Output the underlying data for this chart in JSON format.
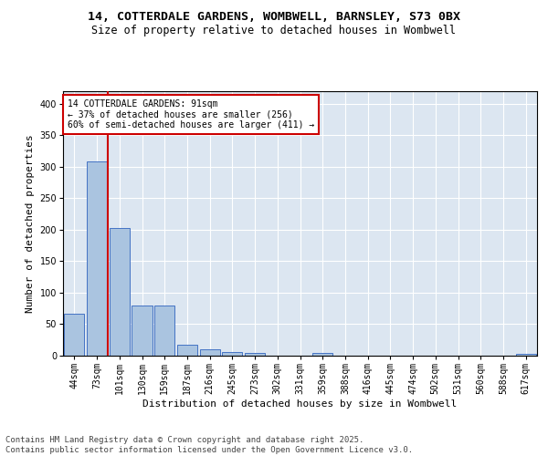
{
  "title_line1": "14, COTTERDALE GARDENS, WOMBWELL, BARNSLEY, S73 0BX",
  "title_line2": "Size of property relative to detached houses in Wombwell",
  "xlabel": "Distribution of detached houses by size in Wombwell",
  "ylabel": "Number of detached properties",
  "categories": [
    "44sqm",
    "73sqm",
    "101sqm",
    "130sqm",
    "159sqm",
    "187sqm",
    "216sqm",
    "245sqm",
    "273sqm",
    "302sqm",
    "331sqm",
    "359sqm",
    "388sqm",
    "416sqm",
    "445sqm",
    "474sqm",
    "502sqm",
    "531sqm",
    "560sqm",
    "588sqm",
    "617sqm"
  ],
  "values": [
    67,
    308,
    203,
    79,
    79,
    18,
    10,
    6,
    5,
    0,
    0,
    5,
    0,
    0,
    0,
    0,
    0,
    0,
    0,
    0,
    3
  ],
  "bar_color": "#aac4e0",
  "bar_edge_color": "#4472c4",
  "background_color": "#dce6f1",
  "grid_color": "#ffffff",
  "vline_color": "#cc0000",
  "vline_x": 1.5,
  "annotation_text": "14 COTTERDALE GARDENS: 91sqm\n← 37% of detached houses are smaller (256)\n60% of semi-detached houses are larger (411) →",
  "annotation_box_color": "#ffffff",
  "annotation_box_edge": "#cc0000",
  "ylim": [
    0,
    420
  ],
  "yticks": [
    0,
    50,
    100,
    150,
    200,
    250,
    300,
    350,
    400
  ],
  "footer_text": "Contains HM Land Registry data © Crown copyright and database right 2025.\nContains public sector information licensed under the Open Government Licence v3.0.",
  "title_fontsize": 9.5,
  "subtitle_fontsize": 8.5,
  "axis_label_fontsize": 8,
  "tick_fontsize": 7,
  "annotation_fontsize": 7,
  "footer_fontsize": 6.5
}
